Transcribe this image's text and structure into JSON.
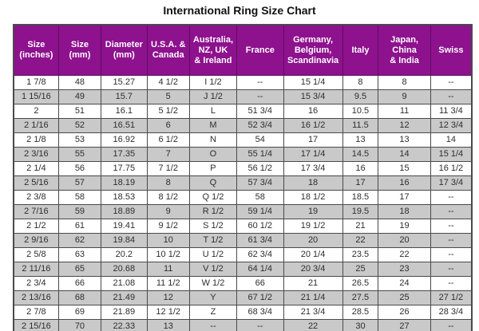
{
  "title": "International Ring Size Chart",
  "colors": {
    "header_bg": "#8E118E",
    "header_text": "#FFFFFF",
    "row_alt_bg": "#C9C9C9",
    "row_bg": "#FFFFFF",
    "cell_text": "#2E2E2E",
    "border": "#4A4A4A"
  },
  "chart_data": {
    "type": "table",
    "title": "International Ring Size Chart",
    "columns": [
      "Size\n(inches)",
      "Size\n(mm)",
      "Diameter\n(mm)",
      "U.S.A. &\nCanada",
      "Australia,\nNZ, UK\n& Ireland",
      "France",
      "Germany,\nBelgium,\nScandinavia",
      "Italy",
      "Japan,\nChina\n& India",
      "Swiss"
    ],
    "rows": [
      [
        "1 7/8",
        "48",
        "15.27",
        "4 1/2",
        "I 1/2",
        "--",
        "15 1/4",
        "8",
        "8",
        "--"
      ],
      [
        "1 15/16",
        "49",
        "15.7",
        "5",
        "J 1/2",
        "--",
        "15 3/4",
        "9.5",
        "9",
        "--"
      ],
      [
        "2",
        "51",
        "16.1",
        "5 1/2",
        "L",
        "51 3/4",
        "16",
        "10.5",
        "11",
        "11 3/4"
      ],
      [
        "2 1/16",
        "52",
        "16.51",
        "6",
        "M",
        "52 3/4",
        "16 1/2",
        "11.5",
        "12",
        "12 3/4"
      ],
      [
        "2 1/8",
        "53",
        "16.92",
        "6 1/2",
        "N",
        "54",
        "17",
        "13",
        "13",
        "14"
      ],
      [
        "2 3/16",
        "55",
        "17.35",
        "7",
        "O",
        "55 1/4",
        "17 1/4",
        "14.5",
        "14",
        "15 1/4"
      ],
      [
        "2 1/4",
        "56",
        "17.75",
        "7 1/2",
        "P",
        "56 1/2",
        "17 3/4",
        "16",
        "15",
        "16 1/2"
      ],
      [
        "2 5/16",
        "57",
        "18.19",
        "8",
        "Q",
        "57 3/4",
        "18",
        "17",
        "16",
        "17 3/4"
      ],
      [
        "2 3/8",
        "58",
        "18.53",
        "8 1/2",
        "Q 1/2",
        "58",
        "18 1/2",
        "18.5",
        "17",
        "--"
      ],
      [
        "2 7/16",
        "59",
        "18.89",
        "9",
        "R 1/2",
        "59 1/4",
        "19",
        "19.5",
        "18",
        "--"
      ],
      [
        "2 1/2",
        "61",
        "19.41",
        "9 1/2",
        "S 1/2",
        "60 1/2",
        "19 1/2",
        "21",
        "19",
        "--"
      ],
      [
        "2 9/16",
        "62",
        "19.84",
        "10",
        "T 1/2",
        "61 3/4",
        "20",
        "22",
        "20",
        "--"
      ],
      [
        "2 5/8",
        "63",
        "20.2",
        "10 1/2",
        "U 1/2",
        "62 3/4",
        "20 1/4",
        "23.5",
        "22",
        "--"
      ],
      [
        "2 11/16",
        "65",
        "20.68",
        "11",
        "V 1/2",
        "64 1/4",
        "20 3/4",
        "25",
        "23",
        "--"
      ],
      [
        "2 3/4",
        "66",
        "21.08",
        "11 1/2",
        "W 1/2",
        "66",
        "21",
        "26.5",
        "24",
        "--"
      ],
      [
        "2 13/16",
        "68",
        "21.49",
        "12",
        "Y",
        "67 1/2",
        "21 1/4",
        "27.5",
        "25",
        "27 1/2"
      ],
      [
        "2 7/8",
        "69",
        "21.89",
        "12 1/2",
        "Z",
        "68 3/4",
        "21 3/4",
        "28.5",
        "26",
        "28 3/4"
      ],
      [
        "2 15/16",
        "70",
        "22.33",
        "13",
        "--",
        "--",
        "22",
        "30",
        "27",
        "--"
      ]
    ]
  }
}
